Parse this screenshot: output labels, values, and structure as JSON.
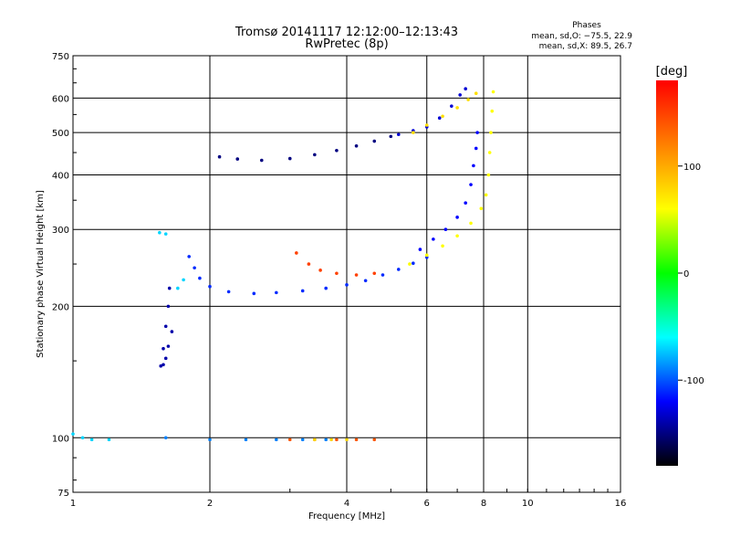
{
  "chart_data": {
    "type": "scatter",
    "title": "Tromsø 20141117 12:12:00–12:13:43",
    "subtitle": "RwPretec (8p)",
    "xlabel": "Frequency [MHz]",
    "ylabel": "Stationary phase Virtual Height [km]",
    "x_scale": "log",
    "y_scale": "log",
    "xlim": [
      1,
      16
    ],
    "ylim": [
      75,
      750
    ],
    "x_ticks": [
      1,
      2,
      4,
      6,
      8,
      10,
      16
    ],
    "y_ticks": [
      75,
      100,
      200,
      300,
      400,
      500,
      600,
      750
    ],
    "x_gridlines": [
      2,
      4,
      6,
      8,
      10
    ],
    "y_gridlines": [
      100,
      200,
      300,
      400,
      500,
      600
    ],
    "grid": true,
    "legend": {
      "heading": "Phases",
      "line1": "mean, sd,O: −75.5, 22.9",
      "line2": "mean, sd,X:  89.5, 26.7",
      "placement": "top-right"
    },
    "colorbar": {
      "label": "[deg]",
      "range": [
        -180,
        180
      ],
      "ticks": [
        100,
        0,
        -100
      ],
      "colors": [
        "#ff0000",
        "#ff8000",
        "#ffff00",
        "#00ff00",
        "#00ffff",
        "#0000ff",
        "#000000"
      ]
    },
    "traces": [
      {
        "phase": -110,
        "points": [
          [
            1.8,
            260
          ],
          [
            1.85,
            245
          ],
          [
            1.9,
            232
          ],
          [
            2.0,
            222
          ],
          [
            2.2,
            216
          ],
          [
            2.5,
            214
          ],
          [
            2.8,
            215
          ],
          [
            3.2,
            217
          ],
          [
            3.6,
            220
          ],
          [
            4.0,
            224
          ],
          [
            4.4,
            229
          ],
          [
            4.8,
            236
          ],
          [
            5.2,
            243
          ],
          [
            5.6,
            251
          ],
          [
            6.0,
            259
          ]
        ]
      },
      {
        "phase": -140,
        "points": [
          [
            1.65,
            175
          ],
          [
            1.62,
            162
          ],
          [
            1.6,
            152
          ],
          [
            1.58,
            147
          ],
          [
            1.56,
            146
          ],
          [
            1.58,
            160
          ],
          [
            1.6,
            180
          ],
          [
            1.62,
            200
          ],
          [
            1.63,
            220
          ]
        ]
      },
      {
        "phase": -150,
        "points": [
          [
            2.1,
            440
          ],
          [
            2.3,
            435
          ],
          [
            2.6,
            432
          ],
          [
            3.0,
            436
          ],
          [
            3.4,
            445
          ],
          [
            3.8,
            455
          ],
          [
            4.2,
            466
          ],
          [
            4.6,
            478
          ],
          [
            5.0,
            490
          ]
        ]
      },
      {
        "phase": -130,
        "points": [
          [
            5.2,
            495
          ],
          [
            5.6,
            505
          ],
          [
            6.0,
            515
          ],
          [
            6.4,
            540
          ],
          [
            6.8,
            575
          ],
          [
            7.1,
            610
          ],
          [
            7.3,
            630
          ]
        ]
      },
      {
        "phase": 75,
        "points": [
          [
            5.6,
            500
          ],
          [
            6.0,
            520
          ],
          [
            6.5,
            545
          ],
          [
            7.0,
            570
          ],
          [
            7.4,
            595
          ],
          [
            7.7,
            615
          ]
        ]
      },
      {
        "phase": 60,
        "points": [
          [
            5.5,
            250
          ],
          [
            6.0,
            262
          ],
          [
            6.5,
            275
          ],
          [
            7.0,
            290
          ],
          [
            7.5,
            310
          ],
          [
            7.9,
            335
          ],
          [
            8.1,
            360
          ],
          [
            8.2,
            400
          ],
          [
            8.25,
            450
          ],
          [
            8.3,
            500
          ],
          [
            8.35,
            560
          ],
          [
            8.4,
            620
          ]
        ]
      },
      {
        "phase": -120,
        "points": [
          [
            5.8,
            270
          ],
          [
            6.2,
            285
          ],
          [
            6.6,
            300
          ],
          [
            7.0,
            320
          ],
          [
            7.3,
            345
          ],
          [
            7.5,
            380
          ],
          [
            7.6,
            420
          ],
          [
            7.7,
            460
          ],
          [
            7.75,
            500
          ]
        ]
      },
      {
        "phase": 150,
        "points": [
          [
            3.1,
            265
          ],
          [
            3.3,
            250
          ],
          [
            3.5,
            242
          ],
          [
            3.8,
            238
          ],
          [
            4.2,
            236
          ],
          [
            4.6,
            238
          ]
        ]
      },
      {
        "phase": -90,
        "points": [
          [
            1.6,
            100
          ],
          [
            2.0,
            99
          ],
          [
            2.4,
            99
          ],
          [
            2.8,
            99
          ],
          [
            3.2,
            99
          ],
          [
            3.6,
            99
          ]
        ]
      },
      {
        "phase": 140,
        "points": [
          [
            3.0,
            99
          ],
          [
            3.4,
            99
          ],
          [
            3.8,
            99
          ],
          [
            4.2,
            99
          ],
          [
            4.6,
            99
          ]
        ]
      },
      {
        "phase": 80,
        "points": [
          [
            3.4,
            99
          ],
          [
            3.7,
            99
          ],
          [
            4.0,
            99
          ]
        ]
      },
      {
        "phase": -70,
        "points": [
          [
            1.0,
            102
          ],
          [
            1.05,
            100
          ],
          [
            1.1,
            99
          ],
          [
            1.2,
            99
          ]
        ]
      },
      {
        "phase": -70,
        "points": [
          [
            1.55,
            295
          ],
          [
            1.6,
            293
          ],
          [
            1.75,
            230
          ],
          [
            1.7,
            220
          ]
        ]
      }
    ]
  }
}
